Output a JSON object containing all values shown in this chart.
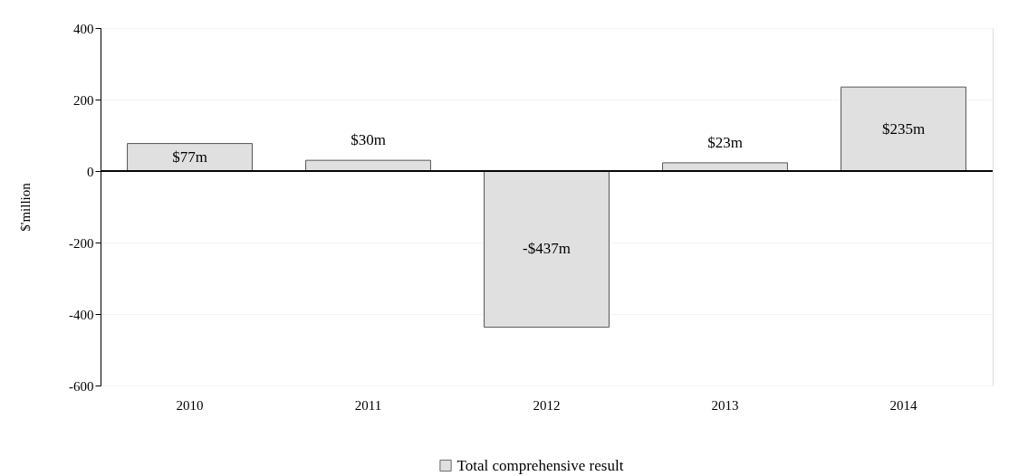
{
  "chart_data": {
    "type": "bar",
    "ylabel": "$'million",
    "categories": [
      "2010",
      "2011",
      "2012",
      "2013",
      "2014"
    ],
    "series": [
      {
        "name": "Total comprehensive result",
        "color": "#e0e0e0",
        "values": [
          77,
          30,
          -437,
          23,
          235
        ],
        "value_labels": [
          "$77m",
          "$30m",
          "-$437m",
          "$23m",
          "$235m"
        ]
      }
    ],
    "ylim": [
      -600,
      400
    ],
    "yticks": [
      -600,
      -400,
      -200,
      0,
      200,
      400
    ],
    "grid": "y",
    "legend": "bottom"
  }
}
